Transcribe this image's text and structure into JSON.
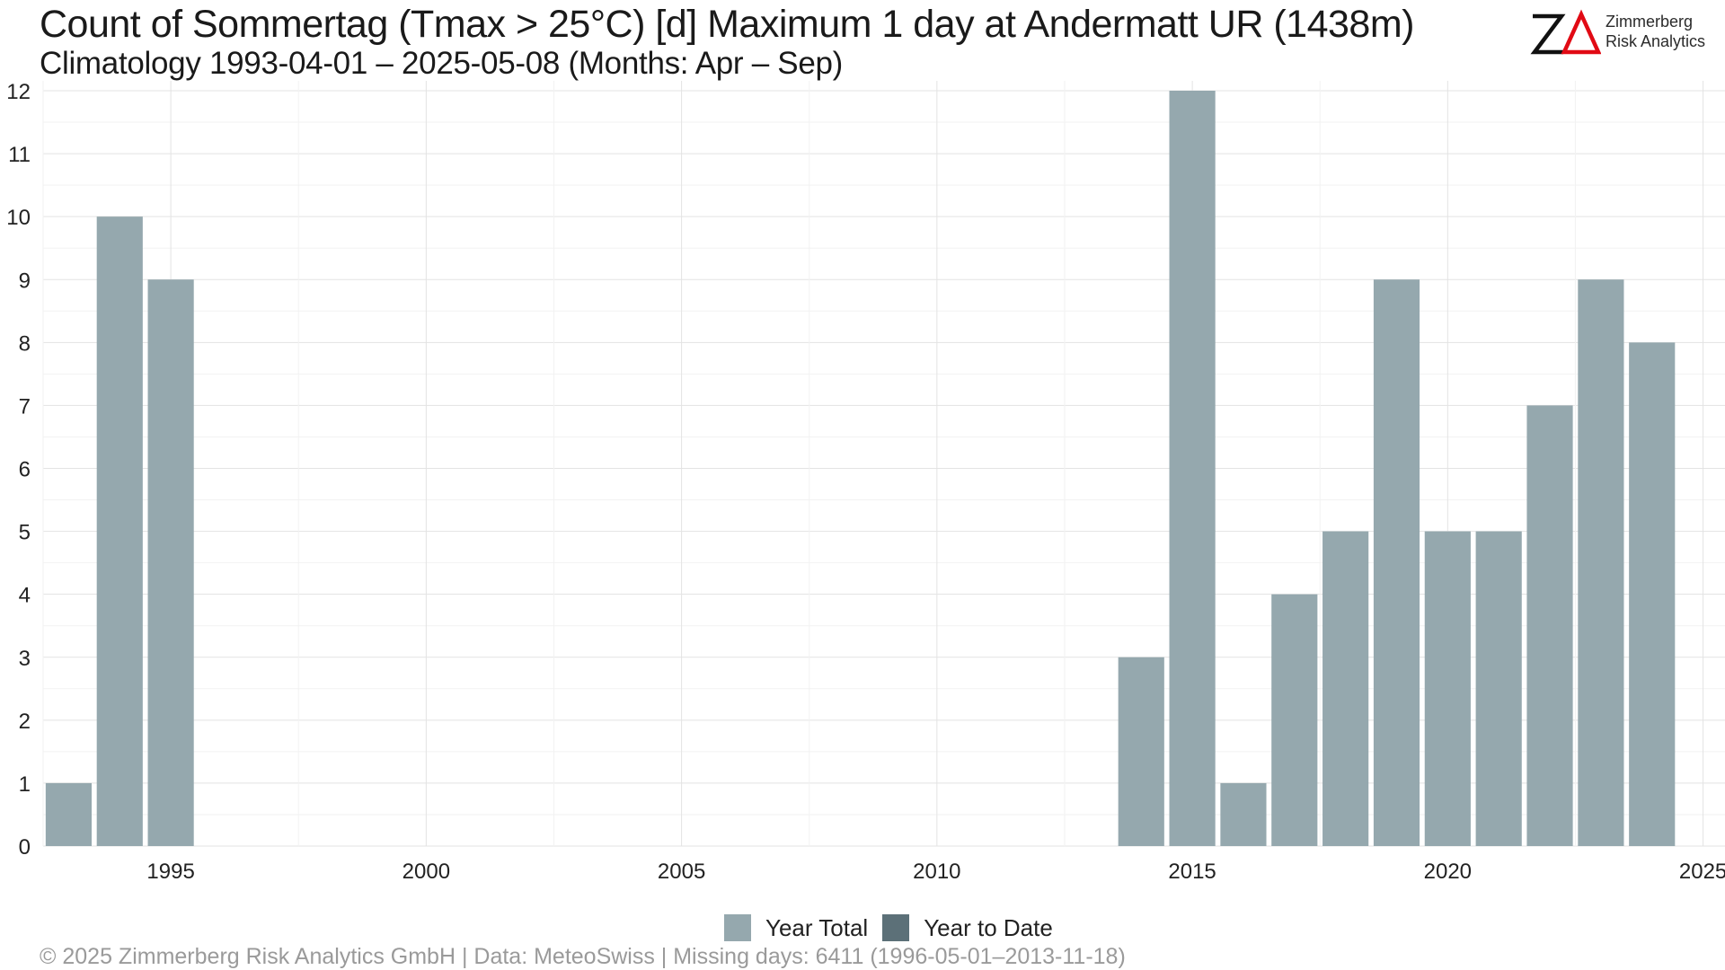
{
  "chart_data": {
    "type": "bar",
    "title": "Count of Sommertag (Tmax > 25°C) [d] Maximum 1 day at Andermatt  UR (1438m)",
    "subtitle": "Climatology 1993-04-01 – 2025-05-08 (Months: Apr – Sep)",
    "xlabel": "",
    "ylabel": "",
    "x_ticks": [
      1995,
      2000,
      2005,
      2010,
      2015,
      2020,
      2025
    ],
    "y_ticks": [
      0,
      1,
      2,
      3,
      4,
      5,
      6,
      7,
      8,
      9,
      10,
      11,
      12
    ],
    "xlim": [
      1992.5,
      2025.5
    ],
    "ylim": [
      0,
      12
    ],
    "grid": true,
    "legend_position": "bottom",
    "series": [
      {
        "name": "Year Total",
        "color": "#95a8ae",
        "x": [
          1993,
          1994,
          1995,
          2014,
          2015,
          2016,
          2017,
          2018,
          2019,
          2020,
          2021,
          2022,
          2023,
          2024
        ],
        "values": [
          1,
          10,
          9,
          3,
          12,
          1,
          4,
          5,
          9,
          5,
          5,
          7,
          9,
          8
        ]
      },
      {
        "name": "Year to Date",
        "color": "#5c7078",
        "x": [],
        "values": []
      }
    ]
  },
  "logo": {
    "text_line1": "Zimmerberg",
    "text_line2": "Risk Analytics"
  },
  "footer": "©  2025 Zimmerberg Risk Analytics GmbH | Data: MeteoSwiss | Missing days: 6411 (1996-05-01–2013-11-18)"
}
